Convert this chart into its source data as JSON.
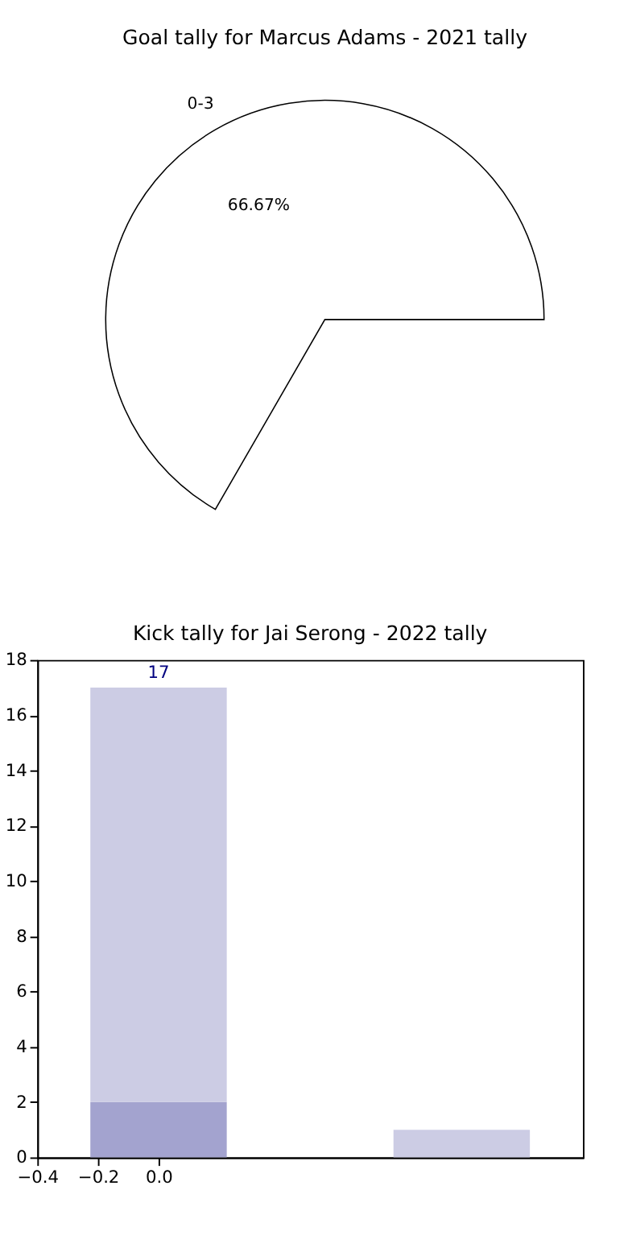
{
  "chart_data": [
    {
      "type": "pie",
      "title": "Goal tally for Marcus Adams - 2021 tally",
      "categories": [
        "0-3"
      ],
      "values": [
        66.67
      ],
      "colors": [
        "#ffffff"
      ],
      "value_labels": [
        "66.67%"
      ]
    },
    {
      "type": "bar",
      "title": "Kick tally for Jai Serong - 2022 tally",
      "x": [
        0,
        1
      ],
      "stacked": true,
      "series": [
        {
          "color": "#a3a3cf",
          "values": [
            2,
            null
          ]
        },
        {
          "color": "#cccce4",
          "values": [
            15,
            1
          ]
        }
      ],
      "totals": [
        "17",
        null
      ],
      "xlim": [
        -0.4,
        1.4
      ],
      "xticks": [
        {
          "value": -0.4,
          "label": "−0.4"
        },
        {
          "value": -0.2,
          "label": "−0.2"
        },
        {
          "value": 0.0,
          "label": "0.0"
        }
      ],
      "ylim": [
        0,
        18
      ],
      "yticks": [
        0,
        2,
        4,
        6,
        8,
        10,
        12,
        14,
        16,
        18
      ],
      "grid": false
    }
  ]
}
